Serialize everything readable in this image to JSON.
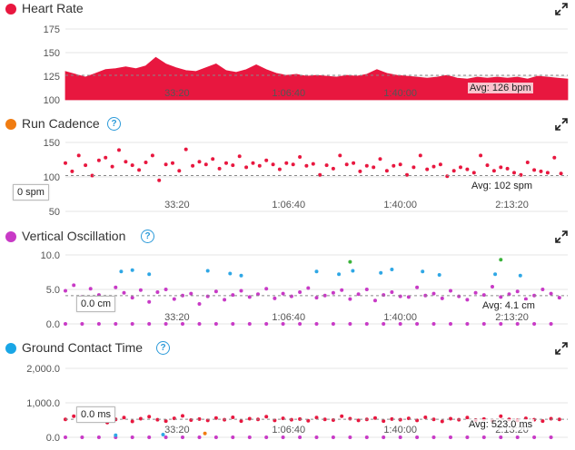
{
  "colors": {
    "heart": "#e8173f",
    "cadence_dot": "#e8173f",
    "cadence_legend": "#f07c12",
    "vertical": "#c83ac6",
    "gct_legend": "#19a6e6",
    "blue": "#2fa7e5",
    "green": "#3bb33b",
    "orange": "#f07c12",
    "grid": "#e4e4e4",
    "avg_line": "#888888"
  },
  "icons": {
    "help": "question-circle-icon",
    "expand": "expand-arrows-icon"
  },
  "help_glyph": "?",
  "chart_data": [
    {
      "type": "area",
      "title": "Heart Rate",
      "legend_color": "#e8173f",
      "ylim": [
        100,
        175
      ],
      "yticks": [
        100,
        125,
        150,
        175
      ],
      "x_tick_labels": [
        "33:20",
        "1:06:40",
        "1:40:00"
      ],
      "x_tick_seconds": [
        2000,
        4000,
        6000
      ],
      "xlim": [
        0,
        9000
      ],
      "avg": 126,
      "avg_label": "Avg: 126 bpm",
      "series": [
        {
          "x": [
            0,
            180,
            360,
            540,
            720,
            900,
            1080,
            1260,
            1440,
            1620,
            1800,
            1980,
            2160,
            2340,
            2520,
            2700,
            2880,
            3060,
            3240,
            3420,
            3600,
            3780,
            3960,
            4140,
            4320,
            4500,
            4680,
            4860,
            5040,
            5220,
            5400,
            5580,
            5760,
            5940,
            6120,
            6300,
            6480,
            6660,
            6840,
            7020,
            7200,
            7380,
            7560,
            7740,
            7920,
            8100,
            8280,
            8460,
            8640,
            8820,
            9000
          ],
          "y": [
            130,
            127,
            124,
            128,
            132,
            133,
            135,
            133,
            136,
            145,
            138,
            134,
            131,
            130,
            134,
            138,
            131,
            129,
            132,
            137,
            132,
            128,
            126,
            127,
            125,
            126,
            125,
            124,
            126,
            125,
            127,
            132,
            128,
            126,
            125,
            124,
            123,
            124,
            126,
            123,
            122,
            124,
            123,
            124,
            123,
            124,
            122,
            125,
            124,
            123,
            122
          ]
        }
      ]
    },
    {
      "type": "scatter",
      "title": "Run Cadence",
      "legend_color": "#f07c12",
      "ylim": [
        50,
        150
      ],
      "yticks": [
        50,
        100,
        150
      ],
      "x_tick_labels": [
        "33:20",
        "1:06:40",
        "1:40:00",
        "2:13:20"
      ],
      "x_tick_seconds": [
        2000,
        4000,
        6000,
        8000
      ],
      "xlim": [
        0,
        9000
      ],
      "avg": 102,
      "avg_label": "Avg: 102 spm",
      "cursor_label": "0 spm",
      "series": [
        {
          "name": "",
          "x": [
            0,
            120,
            240,
            360,
            480,
            600,
            720,
            840,
            960,
            1080,
            1200,
            1320,
            1440,
            1560,
            1680,
            1800,
            1920,
            2040,
            2160,
            2280,
            2400,
            2520,
            2640,
            2760,
            2880,
            3000,
            3120,
            3240,
            3360,
            3480,
            3600,
            3720,
            3840,
            3960,
            4080,
            4200,
            4320,
            4440,
            4560,
            4680,
            4800,
            4920,
            5040,
            5160,
            5280,
            5400,
            5520,
            5640,
            5760,
            5880,
            6000,
            6120,
            6240,
            6360,
            6480,
            6600,
            6720,
            6840,
            6960,
            7080,
            7200,
            7320,
            7440,
            7560,
            7680,
            7800,
            7920,
            8040,
            8160,
            8280,
            8400,
            8520,
            8640,
            8760,
            8880
          ],
          "y": [
            120,
            108,
            131,
            117,
            102,
            124,
            128,
            115,
            139,
            122,
            117,
            110,
            121,
            131,
            95,
            118,
            120,
            109,
            140,
            116,
            122,
            118,
            126,
            112,
            120,
            117,
            130,
            114,
            120,
            116,
            124,
            118,
            111,
            120,
            118,
            129,
            116,
            119,
            103,
            117,
            112,
            131,
            118,
            120,
            108,
            116,
            114,
            126,
            109,
            116,
            118,
            103,
            114,
            131,
            111,
            115,
            118,
            101,
            109,
            114,
            111,
            106,
            131,
            117,
            109,
            114,
            112,
            106,
            103,
            121,
            110,
            108,
            106,
            128,
            105
          ]
        }
      ]
    },
    {
      "type": "scatter",
      "title": "Vertical Oscillation",
      "legend_color": "#c83ac6",
      "ylim": [
        0,
        10
      ],
      "yticks": [
        0,
        5,
        10
      ],
      "ytick_labels": [
        "0.0",
        "5.0",
        "10.0"
      ],
      "x_tick_labels": [
        "33:20",
        "1:06:40",
        "1:40:00",
        "2:13:20"
      ],
      "x_tick_seconds": [
        2000,
        4000,
        6000,
        8000
      ],
      "xlim": [
        0,
        9000
      ],
      "avg": 4.1,
      "avg_label": "Avg: 4.1 cm",
      "cursor_label": "0.0 cm",
      "series": [
        {
          "name": "",
          "x": [
            0,
            150,
            300,
            450,
            600,
            750,
            900,
            1050,
            1200,
            1350,
            1500,
            1650,
            1800,
            1950,
            2100,
            2250,
            2400,
            2550,
            2700,
            2850,
            3000,
            3150,
            3300,
            3450,
            3600,
            3750,
            3900,
            4050,
            4200,
            4350,
            4500,
            4650,
            4800,
            4950,
            5100,
            5250,
            5400,
            5550,
            5700,
            5850,
            6000,
            6150,
            6300,
            6450,
            6600,
            6750,
            6900,
            7050,
            7200,
            7350,
            7500,
            7650,
            7800,
            7950,
            8100,
            8250,
            8400,
            8550,
            8700,
            8850
          ],
          "y": [
            4.8,
            5.6,
            3.9,
            5.1,
            4.2,
            3.4,
            5.3,
            4.5,
            3.8,
            4.9,
            3.2,
            4.6,
            5.0,
            3.6,
            4.1,
            4.4,
            2.9,
            4.0,
            4.7,
            3.5,
            4.2,
            4.8,
            3.9,
            4.3,
            5.1,
            3.7,
            4.4,
            4.0,
            4.6,
            5.2,
            3.8,
            4.1,
            4.5,
            4.9,
            3.6,
            4.3,
            5.0,
            3.4,
            4.2,
            4.6,
            4.0,
            3.9,
            5.3,
            4.1,
            4.4,
            3.7,
            4.8,
            4.0,
            3.5,
            4.5,
            4.2,
            5.4,
            3.9,
            4.3,
            4.7,
            3.6,
            4.1,
            5.0,
            4.4,
            3.8
          ]
        },
        {
          "name": "",
          "x": [
            1000,
            1200,
            1500,
            2550,
            2950,
            3150,
            4500,
            4900,
            5150,
            5650,
            5850,
            6400,
            6700,
            7700,
            8150
          ],
          "y": [
            7.6,
            7.8,
            7.2,
            7.7,
            7.3,
            7.0,
            7.6,
            7.2,
            7.7,
            7.4,
            7.9,
            7.6,
            7.1,
            7.2,
            7.0
          ]
        },
        {
          "name": "",
          "x": [
            5100,
            7800
          ],
          "y": [
            9.0,
            9.3
          ]
        },
        {
          "name": "",
          "x": [
            0,
            300,
            600,
            900,
            1200,
            1500,
            1800,
            2100,
            2400,
            2700,
            3000,
            3300,
            3600,
            3900,
            4200,
            4500,
            4800,
            5100,
            5400,
            5700,
            6000,
            6300,
            6600,
            6900,
            7200,
            7500,
            7800,
            8100,
            8400,
            8700
          ],
          "y": [
            0,
            0,
            0,
            0,
            0,
            0,
            0,
            0,
            0,
            0,
            0,
            0,
            0,
            0,
            0,
            0,
            0,
            0,
            0,
            0,
            0,
            0,
            0,
            0,
            0,
            0,
            0,
            0,
            0,
            0
          ]
        }
      ]
    },
    {
      "type": "scatter",
      "title": "Ground Contact Time",
      "legend_color": "#19a6e6",
      "ylim": [
        0,
        2000
      ],
      "yticks": [
        0,
        1000,
        2000
      ],
      "ytick_labels": [
        "0.0",
        "1,000.0",
        "2,000.0"
      ],
      "x_tick_labels": [
        "33:20",
        "1:06:40",
        "1:40:00",
        "2:13:20"
      ],
      "x_tick_seconds": [
        2000,
        4000,
        6000,
        8000
      ],
      "xlim": [
        0,
        9000
      ],
      "avg": 523,
      "avg_label": "Avg: 523.0 ms",
      "cursor_label": "0.0 ms",
      "series": [
        {
          "name": "",
          "x": [
            0,
            150,
            300,
            450,
            600,
            750,
            900,
            1050,
            1200,
            1350,
            1500,
            1650,
            1800,
            1950,
            2100,
            2250,
            2400,
            2550,
            2700,
            2850,
            3000,
            3150,
            3300,
            3450,
            3600,
            3750,
            3900,
            4050,
            4200,
            4350,
            4500,
            4650,
            4800,
            4950,
            5100,
            5250,
            5400,
            5550,
            5700,
            5850,
            6000,
            6150,
            6300,
            6450,
            6600,
            6750,
            6900,
            7050,
            7200,
            7350,
            7500,
            7650,
            7800,
            7950,
            8100,
            8250,
            8400,
            8550,
            8700,
            8850
          ],
          "y": [
            520,
            610,
            480,
            550,
            690,
            430,
            520,
            570,
            460,
            540,
            600,
            510,
            470,
            550,
            620,
            500,
            530,
            490,
            560,
            510,
            580,
            470,
            540,
            520,
            600,
            490,
            550,
            510,
            530,
            480,
            570,
            520,
            500,
            610,
            540,
            490,
            520,
            560,
            470,
            530,
            510,
            550,
            490,
            580,
            520,
            460,
            540,
            510,
            570,
            500,
            530,
            480,
            610,
            520,
            490,
            550,
            510,
            470,
            540,
            520
          ]
        },
        {
          "name": "",
          "x": [
            0,
            300,
            600,
            900,
            1200,
            1500,
            1800,
            2100,
            2400,
            2700,
            3000,
            3300,
            3600,
            3900,
            4200,
            4500,
            4800,
            5100,
            5400,
            5700,
            6000,
            6300,
            6600,
            6900,
            7200,
            7500,
            7800,
            8100,
            8400,
            8700
          ],
          "y": [
            0,
            0,
            0,
            0,
            0,
            0,
            0,
            0,
            0,
            0,
            0,
            0,
            0,
            0,
            0,
            0,
            0,
            0,
            0,
            0,
            0,
            0,
            0,
            0,
            0,
            0,
            0,
            0,
            0,
            0
          ]
        },
        {
          "name": "",
          "x": [
            900,
            1750
          ],
          "y": [
            60,
            80
          ]
        },
        {
          "name": "",
          "x": [
            2500
          ],
          "y": [
            110
          ]
        }
      ]
    }
  ]
}
